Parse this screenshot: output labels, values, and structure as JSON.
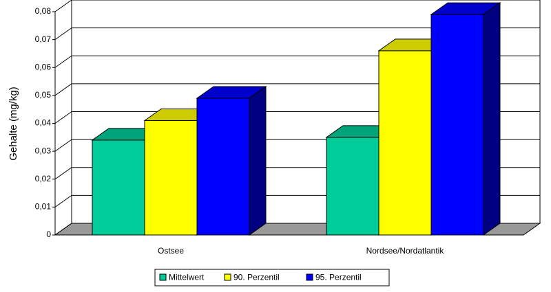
{
  "chart_data": {
    "type": "bar3d",
    "y_label": "Gehalte (mg/kg)",
    "categories": [
      "Ostsee",
      "Nordsee/Nordatlantik"
    ],
    "series": [
      {
        "name": "Mittelwert",
        "color": "#00cc99",
        "values": [
          0.034,
          0.035
        ]
      },
      {
        "name": "90. Perzentil",
        "color": "#ffff00",
        "values": [
          0.041,
          0.066
        ]
      },
      {
        "name": "95. Perzentil",
        "color": "#0000ff",
        "values": [
          0.049,
          0.079
        ]
      }
    ],
    "ylim": [
      0,
      0.08
    ],
    "yticks": [
      0,
      {
        "value": 0.01,
        "label": "0,01"
      },
      {
        "value": 0.02,
        "label": "0,02"
      },
      {
        "value": 0.03,
        "label": "0,03"
      },
      {
        "value": 0.04,
        "label": "0,04"
      },
      {
        "value": 0.05,
        "label": "0,05"
      },
      {
        "value": 0.06,
        "label": "0,06"
      },
      {
        "value": 0.07,
        "label": "0,07"
      },
      {
        "value": 0.08,
        "label": "0,08"
      }
    ],
    "grid": true
  }
}
